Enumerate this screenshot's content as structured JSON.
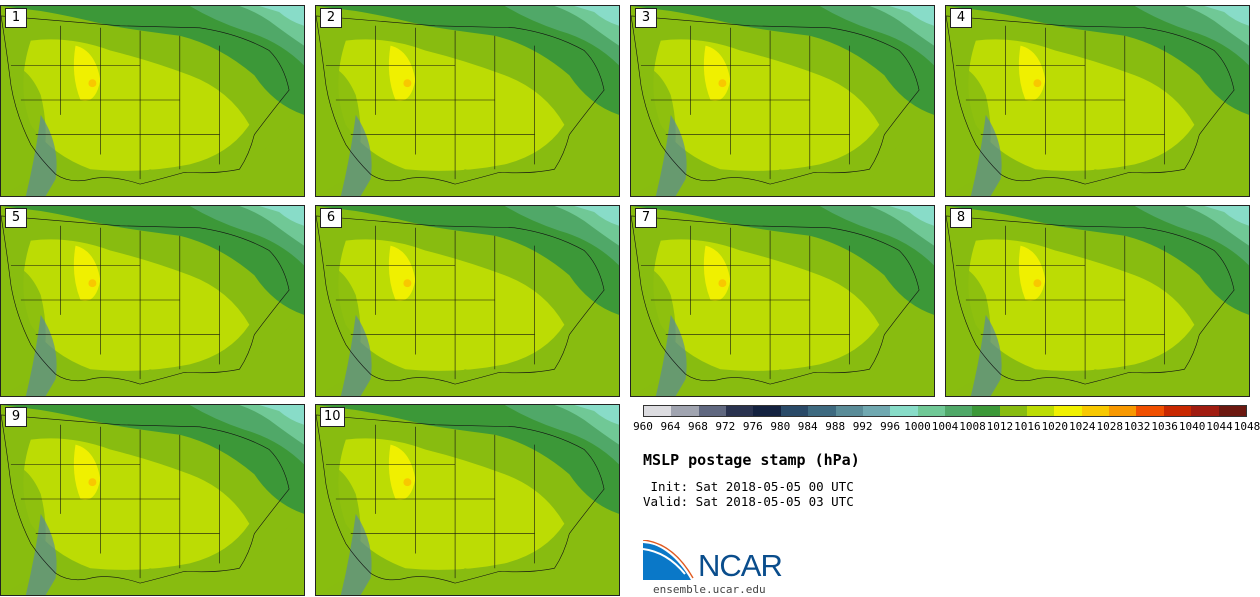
{
  "panels": [
    {
      "label": "1"
    },
    {
      "label": "2"
    },
    {
      "label": "3"
    },
    {
      "label": "4"
    },
    {
      "label": "5"
    },
    {
      "label": "6"
    },
    {
      "label": "7"
    },
    {
      "label": "8"
    },
    {
      "label": "9"
    },
    {
      "label": "10"
    }
  ],
  "colorbar": {
    "colors": [
      "#dcdce0",
      "#a0a4b0",
      "#606880",
      "#2a3350",
      "#142240",
      "#2a4a68",
      "#3e6a80",
      "#5a8c98",
      "#70a8b0",
      "#88dcc8",
      "#70c896",
      "#50a868",
      "#3c9838",
      "#88bc10",
      "#bcdc04",
      "#f0f000",
      "#f8c800",
      "#f89800",
      "#f05000",
      "#c82800",
      "#a01c10",
      "#6c1810"
    ],
    "labels": [
      "960",
      "964",
      "968",
      "972",
      "976",
      "980",
      "984",
      "988",
      "992",
      "996",
      "1000",
      "1004",
      "1008",
      "1012",
      "1016",
      "1020",
      "1024",
      "1028",
      "1032",
      "1036",
      "1040",
      "1044",
      "1048"
    ]
  },
  "title": "MSLP postage stamp (hPa)",
  "init_text": " Init: Sat 2018-05-05 00 UTC",
  "valid_text": "Valid: Sat 2018-05-05 03 UTC",
  "logo": {
    "text": "NCAR"
  },
  "url": "ensemble.ucar.edu"
}
